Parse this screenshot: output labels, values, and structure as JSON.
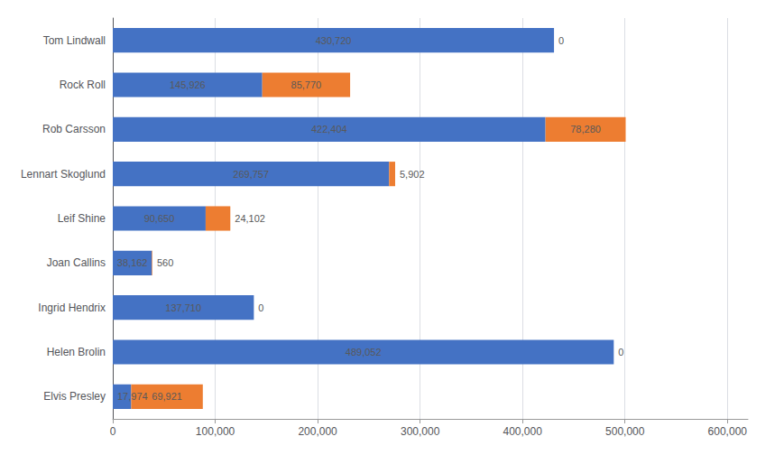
{
  "chart_data": {
    "type": "bar",
    "orientation": "horizontal",
    "stacked": true,
    "data_labels": true,
    "grid": true,
    "categories": [
      "Tom Lindwall",
      "Rock Roll",
      "Rob Carsson",
      "Lennart Skoglund",
      "Leif Shine",
      "Joan Callins",
      "Ingrid Hendrix",
      "Helen Brolin",
      "Elvis Presley"
    ],
    "series": [
      {
        "color": "#4472C4",
        "values": [
          430720,
          145926,
          422404,
          269757,
          90650,
          38162,
          137710,
          489052,
          17974
        ],
        "value_labels": [
          "430,720",
          "145,926",
          "422,404",
          "269,757",
          "90,650",
          "38,162",
          "137,710",
          "489,052",
          "17,974"
        ]
      },
      {
        "color": "#ED7D31",
        "values": [
          0,
          85770,
          78280,
          5902,
          24102,
          560,
          0,
          0,
          69921
        ],
        "value_labels": [
          "0",
          "85,770",
          "78,280",
          "5,902",
          "24,102",
          "560",
          "0",
          "0",
          "69,921"
        ]
      }
    ],
    "xlim": [
      0,
      620000
    ],
    "xticks": [
      0,
      {
        "value": 100000,
        "label": "100,000"
      },
      {
        "value": 200000,
        "label": "200,000"
      },
      {
        "value": 300000,
        "label": "300,000"
      },
      {
        "value": 400000,
        "label": "400,000"
      },
      {
        "value": 500000,
        "label": "500,000"
      },
      {
        "value": 600000,
        "label": "600,000"
      }
    ]
  }
}
